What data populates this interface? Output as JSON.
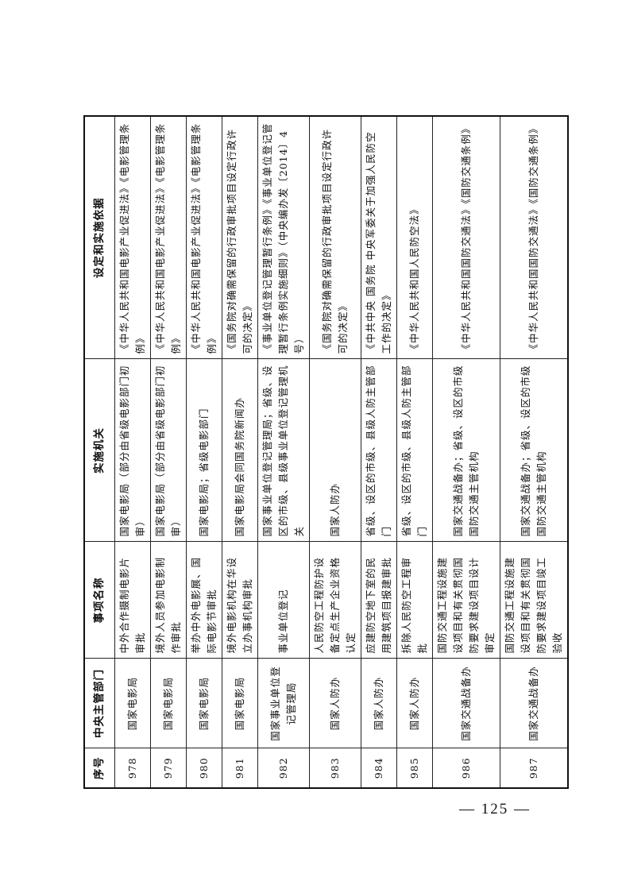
{
  "table": {
    "headers": [
      "序号",
      "中央主管部门",
      "事项名称",
      "实施机关",
      "设定和实施依据"
    ],
    "rows": [
      {
        "no": "978",
        "dept": "国家电影局",
        "item": "中外合作摄制电影片审批",
        "org": "国家电影局（部分由省级电影部门初审）",
        "basis": "《中华人民共和国电影产业促进法》《电影管理条例》"
      },
      {
        "no": "979",
        "dept": "国家电影局",
        "item": "境外人员参加电影制作审批",
        "org": "国家电影局（部分由省级电影部门初审）",
        "basis": "《中华人民共和国电影产业促进法》《电影管理条例》"
      },
      {
        "no": "980",
        "dept": "国家电影局",
        "item": "举办中外电影展、国际电影节审批",
        "org": "国家电影局；省级电影部门",
        "basis": "《中华人民共和国电影产业促进法》《电影管理条例》"
      },
      {
        "no": "981",
        "dept": "国家电影局",
        "item": "境外电影机构在华设立办事机构审批",
        "org": "国家电影局会同国务院新闻办",
        "basis": "《国务院对确需保留的行政审批项目设定行政许可的决定》"
      },
      {
        "no": "982",
        "dept": "国家事业单位登记管理局",
        "item": "事业单位登记",
        "org": "国家事业单位登记管理局；省级、设区的市级、县级事业单位登记管理机关",
        "basis": "《事业单位登记管理暂行条例》《事业单位登记管理暂行条例实施细则》（中央编办发〔2014〕4号）"
      },
      {
        "no": "983",
        "dept": "国家人防办",
        "item": "人民防空工程防护设备定点生产企业资格认定",
        "org": "国家人防办",
        "basis": "《国务院对确需保留的行政审批项目设定行政许可的决定》"
      },
      {
        "no": "984",
        "dept": "国家人防办",
        "item": "应建防空地下室的民用建筑项目报建审批",
        "org": "省级、设区的市级、县级人防主管部门",
        "basis": "《中共中央 国务院 中央军委关于加强人民防空工作的决定》"
      },
      {
        "no": "985",
        "dept": "国家人防办",
        "item": "拆除人民防空工程审批",
        "org": "省级、设区的市级、县级人防主管部门",
        "basis": "《中华人民共和国人民防空法》"
      },
      {
        "no": "986",
        "dept": "国家交通战备办",
        "item": "国防交通工程设施建设项目和有关贯彻国防要求建设项目设计审定",
        "org": "国家交通战备办；省级、设区的市级国防交通主管机构",
        "basis": "《中华人民共和国国防交通法》《国防交通条例》"
      },
      {
        "no": "987",
        "dept": "国家交通战备办",
        "item": "国防交通工程设施建设项目和有关贯彻国防要求建设项目竣工验收",
        "org": "国家交通战备办；省级、设区的市级国防交通主管机构",
        "basis": "《中华人民共和国国防交通法》《国防交通条例》"
      }
    ]
  },
  "footer": {
    "page_number": "— 125 —"
  }
}
